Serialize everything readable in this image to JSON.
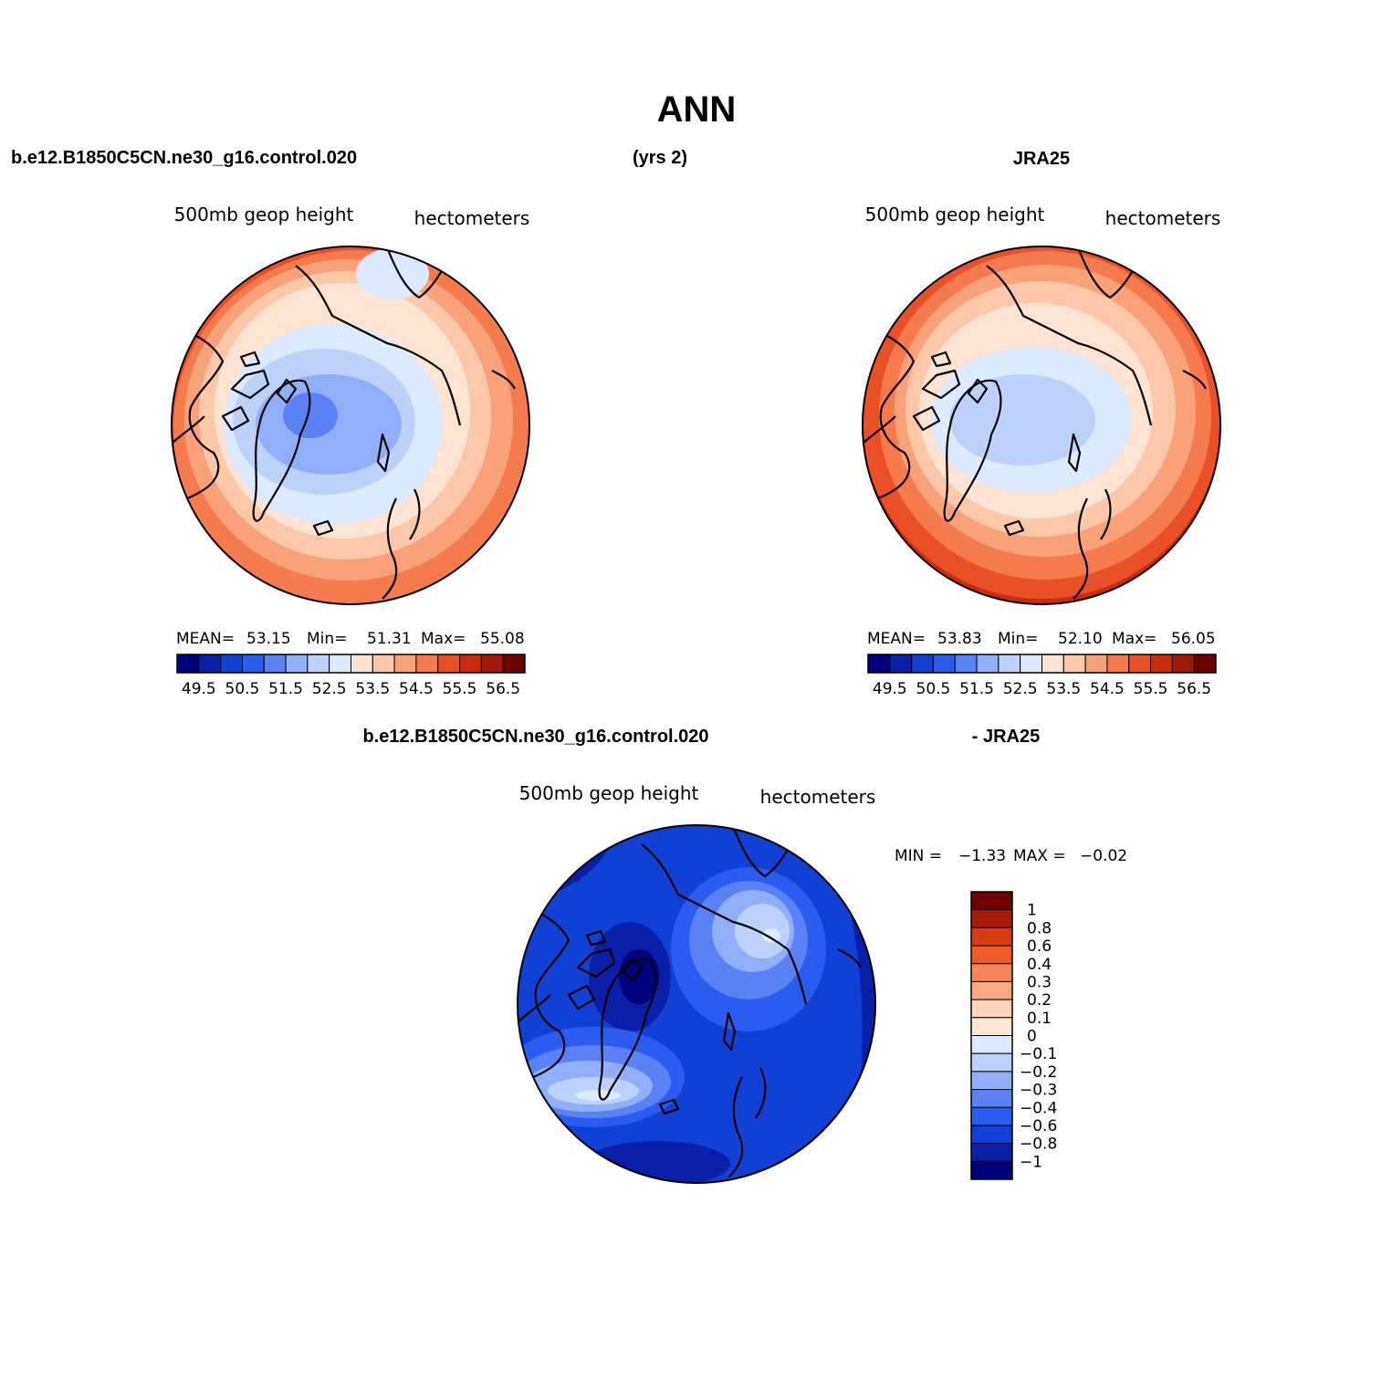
{
  "page": {
    "title": "ANN",
    "case_name": "b.e12.B1850C5CN.ne30_g16.control.020",
    "years": "(yrs 2)",
    "obs_name": "JRA25",
    "diff_left": "b.e12.B1850C5CN.ne30_g16.control.020",
    "diff_right": "- JRA25"
  },
  "panels": [
    {
      "variable": "500mb geop height",
      "units": "hectometers",
      "stats": {
        "mean_label": "MEAN=",
        "mean": "53.15",
        "min_label": "Min=",
        "min": "51.31",
        "max_label": "Max=",
        "max": "55.08"
      }
    },
    {
      "variable": "500mb geop height",
      "units": "hectometers",
      "stats": {
        "mean_label": "MEAN=",
        "mean": "53.83",
        "min_label": "Min=",
        "min": "52.10",
        "max_label": "Max=",
        "max": "56.05"
      }
    },
    {
      "variable": "500mb geop height",
      "units": "hectometers",
      "stats": {
        "min_label": "MIN =",
        "min": "−1.33",
        "max_label": "MAX =",
        "max": "−0.02"
      }
    }
  ],
  "colorbar_main": {
    "colors": [
      "#00007f",
      "#0a1fa8",
      "#1040d4",
      "#2a5cf0",
      "#5a82f5",
      "#8fb0f8",
      "#bcd2fa",
      "#dde9fc",
      "#fde4d2",
      "#fcc8a8",
      "#f9a27a",
      "#f57a4e",
      "#ea5025",
      "#cc2a0a",
      "#9e1a06",
      "#6e0000"
    ],
    "labels": [
      "49.5",
      "50.5",
      "51.5",
      "52.5",
      "53.5",
      "54.5",
      "55.5",
      "56.5"
    ],
    "levels": [
      49.5,
      50.5,
      51.5,
      52.5,
      53.5,
      54.5,
      55.5,
      56.5
    ]
  },
  "colorbar_diff": {
    "colors": [
      "#6e0000",
      "#a81a06",
      "#d93a12",
      "#f05a28",
      "#f58455",
      "#f9a986",
      "#fcd2b8",
      "#fde8d8",
      "#dde9fc",
      "#bcd2fa",
      "#8fb0f8",
      "#5a82f5",
      "#2a5cf0",
      "#1040d4",
      "#0a1fa8",
      "#00007f"
    ],
    "labels": [
      "1",
      "0.8",
      "0.6",
      "0.4",
      "0.3",
      "0.2",
      "0.1",
      "0",
      "−0.1",
      "−0.2",
      "−0.3",
      "−0.4",
      "−0.6",
      "−0.8",
      "−1"
    ],
    "levels": [
      1,
      0.8,
      0.6,
      0.4,
      0.3,
      0.2,
      0.1,
      0,
      -0.1,
      -0.2,
      -0.3,
      -0.4,
      -0.6,
      -0.8,
      -1
    ]
  }
}
